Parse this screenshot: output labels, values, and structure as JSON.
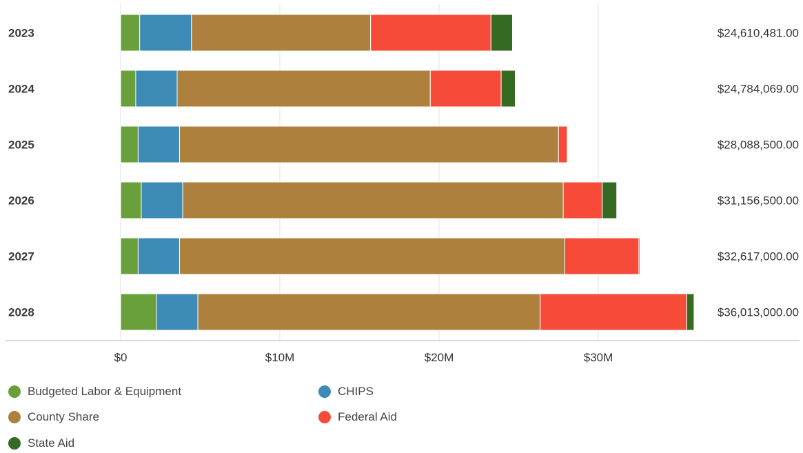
{
  "chart_data": {
    "type": "bar",
    "orientation": "horizontal",
    "stacked": true,
    "categories": [
      "2023",
      "2024",
      "2025",
      "2026",
      "2027",
      "2028"
    ],
    "series": [
      {
        "name": "Budgeted Labor & Equipment",
        "color": "#6aa03c",
        "values": [
          1200000,
          950000,
          1100000,
          1300000,
          1100000,
          2250000
        ]
      },
      {
        "name": "CHIPS",
        "color": "#3c8ab5",
        "values": [
          3250000,
          2600000,
          2600000,
          2600000,
          2600000,
          2600000
        ]
      },
      {
        "name": "County Share",
        "color": "#ad813d",
        "values": [
          11250000,
          15900000,
          23800000,
          23900000,
          24200000,
          21500000
        ]
      },
      {
        "name": "Federal Aid",
        "color": "#f74b3a",
        "values": [
          7560000,
          4450000,
          550000,
          2450000,
          4650000,
          9200000
        ]
      },
      {
        "name": "State Aid",
        "color": "#356a23",
        "values": [
          1350481,
          884069,
          38500,
          906500,
          67000,
          463000
        ]
      }
    ],
    "totals": [
      "$24,610,481.00",
      "$24,784,069.00",
      "$28,088,500.00",
      "$31,156,500.00",
      "$32,617,000.00",
      "$36,013,000.00"
    ],
    "x_ticks": [
      {
        "value": 0,
        "label": "$0"
      },
      {
        "value": 10000000,
        "label": "$10M"
      },
      {
        "value": 20000000,
        "label": "$20M"
      },
      {
        "value": 30000000,
        "label": "$30M"
      }
    ],
    "xlim": [
      0,
      36013000
    ],
    "grid": true,
    "legend_position": "bottom"
  }
}
